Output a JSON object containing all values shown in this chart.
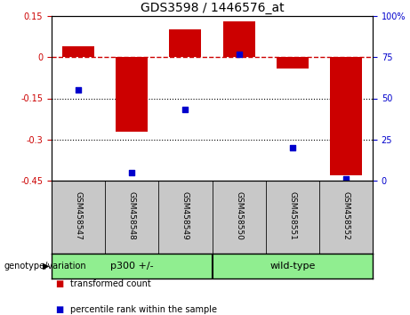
{
  "title": "GDS3598 / 1446576_at",
  "samples": [
    "GSM458547",
    "GSM458548",
    "GSM458549",
    "GSM458550",
    "GSM458551",
    "GSM458552"
  ],
  "red_values": [
    0.04,
    -0.27,
    0.1,
    0.13,
    -0.04,
    -0.43
  ],
  "blue_values": [
    55,
    5,
    43,
    77,
    20,
    1
  ],
  "ylim_left": [
    -0.45,
    0.15
  ],
  "ylim_right": [
    0,
    100
  ],
  "yticks_left": [
    0.15,
    0.0,
    -0.15,
    -0.3,
    -0.45
  ],
  "yticks_right": [
    100,
    75,
    50,
    25,
    0
  ],
  "group_boundary": 3,
  "bar_color": "#CC0000",
  "dot_color": "#0000CC",
  "bar_width": 0.6,
  "dashed_line_color": "#CC0000",
  "dotted_line_color": "#000000",
  "legend_red_label": "transformed count",
  "legend_blue_label": "percentile rank within the sample",
  "genotype_label": "genotype/variation",
  "green_color": "#90EE90",
  "sample_box_color": "#C8C8C8"
}
